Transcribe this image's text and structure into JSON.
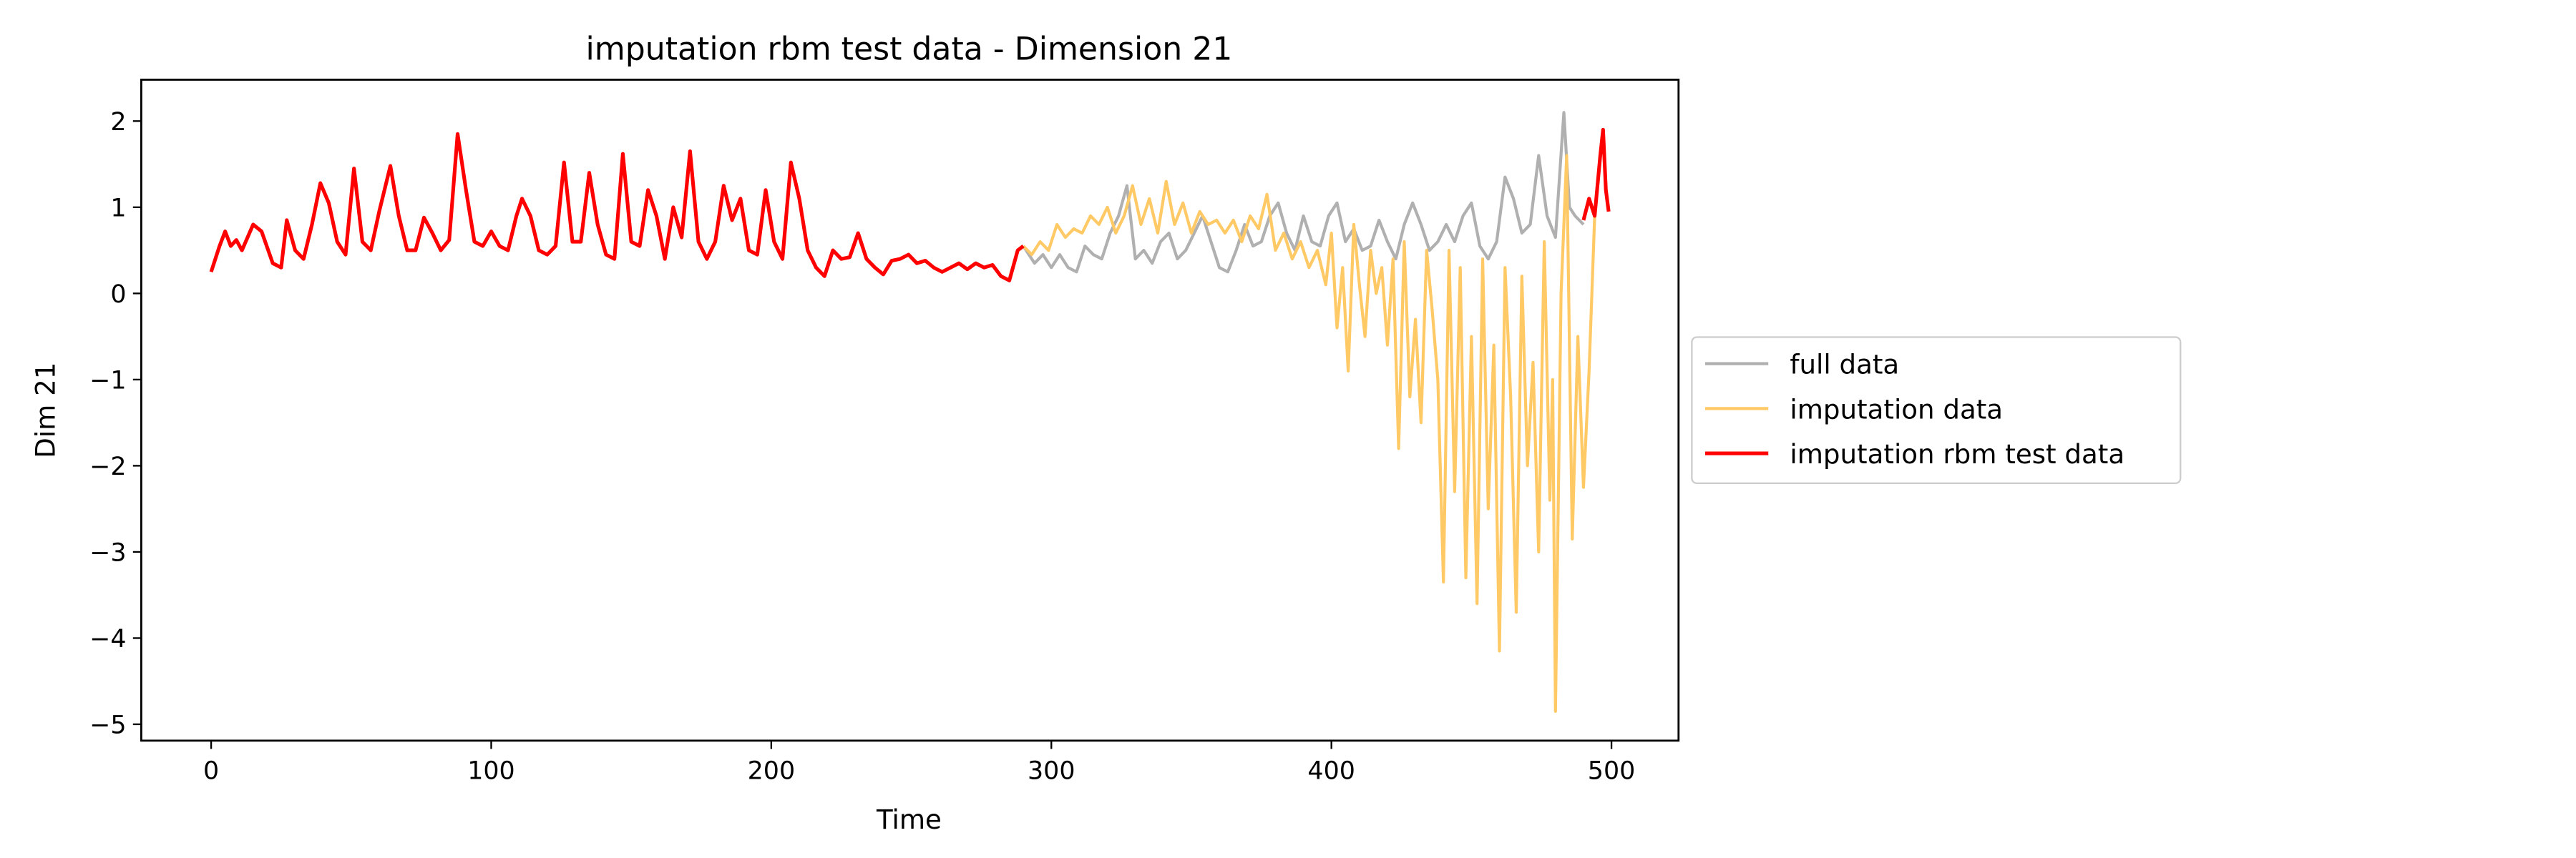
{
  "chart_data": {
    "type": "line",
    "title": "imputation rbm test data - Dimension 21",
    "xlabel": "Time",
    "ylabel": "Dim 21",
    "xlim": [
      -24.95,
      523.95
    ],
    "ylim": [
      -5.19,
      2.48
    ],
    "xticks": [
      0,
      100,
      200,
      300,
      400,
      500
    ],
    "yticks": [
      {
        "value": -5,
        "label": "−5"
      },
      {
        "value": -4,
        "label": "−4"
      },
      {
        "value": -3,
        "label": "−3"
      },
      {
        "value": -2,
        "label": "−2"
      },
      {
        "value": -1,
        "label": "−1"
      },
      0,
      1,
      2
    ],
    "legend": "center left outside",
    "series": [
      {
        "name": "full data",
        "color": "#b0b0b0",
        "x": [
          290,
          294,
          297,
          300,
          303,
          306,
          309,
          312,
          315,
          318,
          321,
          324,
          327,
          330,
          333,
          336,
          339,
          342,
          345,
          348,
          351,
          354,
          357,
          360,
          363,
          366,
          369,
          372,
          375,
          378,
          381,
          384,
          387,
          390,
          393,
          396,
          399,
          402,
          405,
          408,
          411,
          414,
          417,
          420,
          423,
          426,
          429,
          432,
          435,
          438,
          441,
          444,
          447,
          450,
          453,
          456,
          459,
          462,
          465,
          468,
          471,
          474,
          477,
          480,
          483,
          485,
          487,
          490
        ],
        "values": [
          0.55,
          0.35,
          0.45,
          0.3,
          0.45,
          0.3,
          0.25,
          0.55,
          0.45,
          0.4,
          0.7,
          0.9,
          1.25,
          0.4,
          0.5,
          0.35,
          0.6,
          0.7,
          0.4,
          0.5,
          0.7,
          0.9,
          0.6,
          0.3,
          0.25,
          0.5,
          0.8,
          0.55,
          0.6,
          0.9,
          1.05,
          0.7,
          0.5,
          0.9,
          0.6,
          0.55,
          0.9,
          1.05,
          0.6,
          0.75,
          0.5,
          0.55,
          0.85,
          0.6,
          0.4,
          0.8,
          1.05,
          0.8,
          0.5,
          0.6,
          0.8,
          0.6,
          0.9,
          1.05,
          0.55,
          0.4,
          0.6,
          1.35,
          1.1,
          0.7,
          0.8,
          1.6,
          0.9,
          0.65,
          2.1,
          1.0,
          0.9,
          0.8
        ]
      },
      {
        "name": "imputation data",
        "color": "#ffc966",
        "x": [
          290,
          293,
          296,
          299,
          302,
          305,
          308,
          311,
          314,
          317,
          320,
          323,
          326,
          329,
          332,
          335,
          338,
          341,
          344,
          347,
          350,
          353,
          356,
          359,
          362,
          365,
          368,
          371,
          374,
          377,
          380,
          383,
          386,
          389,
          392,
          395,
          398,
          400,
          402,
          404,
          406,
          408,
          410,
          412,
          414,
          416,
          418,
          420,
          422,
          424,
          426,
          428,
          430,
          432,
          434,
          436,
          438,
          440,
          442,
          444,
          446,
          448,
          450,
          452,
          454,
          456,
          458,
          460,
          462,
          464,
          466,
          468,
          470,
          472,
          474,
          476,
          478,
          479,
          480,
          482,
          484,
          486,
          488,
          490,
          492,
          494
        ],
        "values": [
          0.55,
          0.45,
          0.6,
          0.5,
          0.8,
          0.65,
          0.75,
          0.7,
          0.9,
          0.8,
          1.0,
          0.7,
          0.9,
          1.25,
          0.8,
          1.1,
          0.7,
          1.3,
          0.8,
          1.05,
          0.7,
          0.95,
          0.8,
          0.85,
          0.7,
          0.85,
          0.6,
          0.9,
          0.75,
          1.15,
          0.5,
          0.7,
          0.4,
          0.6,
          0.3,
          0.5,
          0.1,
          0.7,
          -0.4,
          0.3,
          -0.9,
          0.8,
          0.1,
          -0.5,
          0.5,
          0,
          0.3,
          -0.6,
          0.4,
          -1.8,
          0.6,
          -1.2,
          -0.3,
          -1.5,
          0.5,
          -0.2,
          -1.0,
          -3.35,
          0.5,
          -2.3,
          0.3,
          -3.3,
          -0.5,
          -3.6,
          0.4,
          -2.5,
          -0.6,
          -4.15,
          0.3,
          -1.2,
          -3.7,
          0.2,
          -2.0,
          -0.8,
          -3.0,
          0.6,
          -2.4,
          -1.0,
          -4.85,
          0,
          1.6,
          -2.85,
          -0.5,
          -2.25,
          -0.9,
          0.9
        ]
      },
      {
        "name": "imputation rbm test data",
        "color": "#ff0000",
        "x": [
          0,
          3,
          5,
          7,
          9,
          11,
          15,
          18,
          22,
          25,
          27,
          30,
          33,
          36,
          39,
          42,
          45,
          48,
          51,
          54,
          57,
          60,
          64,
          67,
          70,
          73,
          76,
          79,
          82,
          85,
          88,
          91,
          94,
          97,
          100,
          103,
          106,
          109,
          111,
          114,
          117,
          120,
          123,
          126,
          129,
          132,
          135,
          138,
          141,
          144,
          147,
          150,
          153,
          156,
          159,
          162,
          165,
          168,
          171,
          174,
          177,
          180,
          183,
          186,
          189,
          192,
          195,
          198,
          201,
          204,
          207,
          210,
          213,
          216,
          219,
          222,
          225,
          228,
          231,
          234,
          237,
          240,
          243,
          246,
          249,
          252,
          255,
          258,
          261,
          264,
          267,
          270,
          273,
          276,
          279,
          282,
          285,
          288,
          290,
          291,
          490,
          492,
          494,
          496,
          497,
          498,
          499
        ],
        "values": [
          0.25,
          0.55,
          0.72,
          0.55,
          0.62,
          0.5,
          0.8,
          0.72,
          0.35,
          0.3,
          0.85,
          0.5,
          0.4,
          0.8,
          1.28,
          1.05,
          0.6,
          0.45,
          1.45,
          0.6,
          0.5,
          0.95,
          1.48,
          0.9,
          0.5,
          0.5,
          0.88,
          0.7,
          0.5,
          0.62,
          1.85,
          1.2,
          0.6,
          0.55,
          0.72,
          0.55,
          0.5,
          0.9,
          1.1,
          0.9,
          0.5,
          0.45,
          0.55,
          1.52,
          0.6,
          0.6,
          1.4,
          0.8,
          0.45,
          0.4,
          1.62,
          0.6,
          0.55,
          1.2,
          0.9,
          0.4,
          1.0,
          0.65,
          1.65,
          0.6,
          0.4,
          0.6,
          1.25,
          0.85,
          1.1,
          0.5,
          0.45,
          1.2,
          0.6,
          0.4,
          1.52,
          1.1,
          0.5,
          0.3,
          0.2,
          0.5,
          0.4,
          0.42,
          0.7,
          0.4,
          0.3,
          0.22,
          0.38,
          0.4,
          0.45,
          0.35,
          0.38,
          0.3,
          0.25,
          0.3,
          0.35,
          0.28,
          0.35,
          0.3,
          0.33,
          0.2,
          0.15,
          0.5,
          0.55,
          null,
          0.85,
          1.1,
          0.9,
          1.6,
          1.9,
          1.2,
          0.95
        ]
      }
    ]
  }
}
